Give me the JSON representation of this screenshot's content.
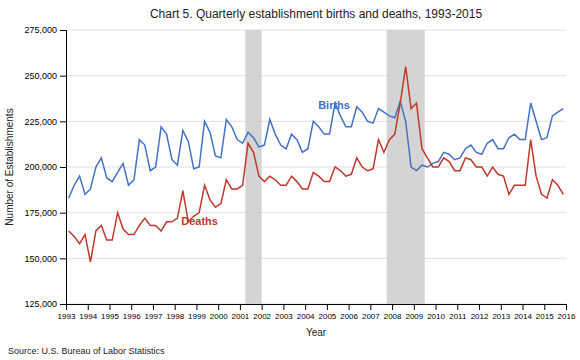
{
  "chart_data": {
    "type": "line",
    "title": "Chart 5. Quarterly establishment births and deaths, 1993-2015",
    "xlabel": "Year",
    "ylabel": "Number of Establishments",
    "source": "Source: U.S. Bureau of Labor Statistics",
    "grid": true,
    "xlim": [
      1993,
      2016
    ],
    "xticks": [
      1993,
      1994,
      1995,
      1996,
      1997,
      1998,
      1999,
      2000,
      2001,
      2002,
      2003,
      2004,
      2005,
      2006,
      2007,
      2008,
      2009,
      2010,
      2011,
      2012,
      2013,
      2014,
      2015,
      2016
    ],
    "ylim": [
      125000,
      275000
    ],
    "yticks": [
      {
        "value": 125000,
        "label": "125,000"
      },
      {
        "value": 150000,
        "label": "150,000"
      },
      {
        "value": 175000,
        "label": "175,000"
      },
      {
        "value": 200000,
        "label": "200,000"
      },
      {
        "value": 225000,
        "label": "225,000"
      },
      {
        "value": 250000,
        "label": "250,000"
      },
      {
        "value": 275000,
        "label": "275,000"
      }
    ],
    "recessions": {
      "color": "#CCCCCC",
      "ranges": [
        [
          2001.25,
          2002.0
        ],
        [
          2007.75,
          2009.5
        ]
      ]
    },
    "annotations": [
      {
        "text": "Births",
        "x": 2004.6,
        "y": 232000,
        "color": "#4472C4"
      },
      {
        "text": "Deaths",
        "x": 1998.3,
        "y": 168000,
        "color": "#C0392B"
      }
    ],
    "x": [
      1993.125,
      1993.375,
      1993.625,
      1993.875,
      1994.125,
      1994.375,
      1994.625,
      1994.875,
      1995.125,
      1995.375,
      1995.625,
      1995.875,
      1996.125,
      1996.375,
      1996.625,
      1996.875,
      1997.125,
      1997.375,
      1997.625,
      1997.875,
      1998.125,
      1998.375,
      1998.625,
      1998.875,
      1999.125,
      1999.375,
      1999.625,
      1999.875,
      2000.125,
      2000.375,
      2000.625,
      2000.875,
      2001.125,
      2001.375,
      2001.625,
      2001.875,
      2002.125,
      2002.375,
      2002.625,
      2002.875,
      2003.125,
      2003.375,
      2003.625,
      2003.875,
      2004.125,
      2004.375,
      2004.625,
      2004.875,
      2005.125,
      2005.375,
      2005.625,
      2005.875,
      2006.125,
      2006.375,
      2006.625,
      2006.875,
      2007.125,
      2007.375,
      2007.625,
      2007.875,
      2008.125,
      2008.375,
      2008.625,
      2008.875,
      2009.125,
      2009.375,
      2009.625,
      2009.875,
      2010.125,
      2010.375,
      2010.625,
      2010.875,
      2011.125,
      2011.375,
      2011.625,
      2011.875,
      2012.125,
      2012.375,
      2012.625,
      2012.875,
      2013.125,
      2013.375,
      2013.625,
      2013.875,
      2014.125,
      2014.375,
      2014.625,
      2014.875,
      2015.125,
      2015.375,
      2015.625,
      2015.875
    ],
    "series": [
      {
        "color": "#4472C4",
        "values": [
          183000,
          190000,
          195000,
          185000,
          188000,
          200000,
          205000,
          194000,
          192000,
          197000,
          202000,
          190000,
          193000,
          215000,
          212000,
          198000,
          200000,
          222000,
          218000,
          204000,
          201000,
          220000,
          214000,
          199000,
          200000,
          225000,
          219000,
          206000,
          205000,
          226000,
          222000,
          215000,
          213000,
          219000,
          216000,
          211000,
          212000,
          226000,
          218000,
          212000,
          210000,
          218000,
          215000,
          208000,
          210000,
          225000,
          222000,
          218000,
          218000,
          235000,
          228000,
          222000,
          222000,
          233000,
          230000,
          225000,
          224000,
          232000,
          230000,
          228000,
          227000,
          236000,
          225000,
          200000,
          198000,
          201000,
          200000,
          202000,
          203000,
          208000,
          207000,
          204000,
          205000,
          210000,
          212000,
          208000,
          207000,
          213000,
          215000,
          210000,
          210000,
          216000,
          218000,
          215000,
          215000,
          235000,
          225000,
          215000,
          216000,
          228000,
          230000,
          232000
        ]
      },
      {
        "color": "#C0392B",
        "values": [
          165000,
          162000,
          158000,
          163000,
          148000,
          165000,
          168000,
          160000,
          160000,
          175000,
          166000,
          163000,
          163000,
          168000,
          172000,
          168000,
          168000,
          165000,
          170000,
          170000,
          172000,
          187000,
          170000,
          173000,
          175000,
          190000,
          182000,
          178000,
          180000,
          193000,
          188000,
          188000,
          190000,
          213000,
          208000,
          195000,
          192000,
          195000,
          193000,
          190000,
          190000,
          195000,
          192000,
          188000,
          188000,
          197000,
          195000,
          192000,
          192000,
          200000,
          198000,
          195000,
          196000,
          205000,
          200000,
          198000,
          199000,
          215000,
          208000,
          215000,
          218000,
          235000,
          255000,
          232000,
          235000,
          210000,
          205000,
          200000,
          200000,
          205000,
          203000,
          198000,
          198000,
          205000,
          204000,
          200000,
          200000,
          195000,
          200000,
          196000,
          195000,
          185000,
          190000,
          190000,
          190000,
          215000,
          195000,
          185000,
          183000,
          193000,
          190000,
          185000
        ]
      }
    ]
  }
}
